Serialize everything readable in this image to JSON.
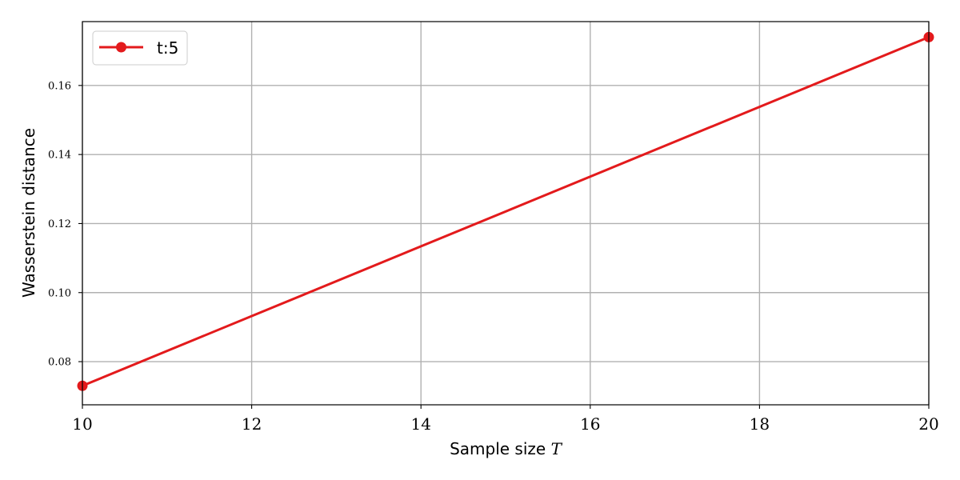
{
  "chart_data": {
    "type": "line",
    "x": [
      10,
      20
    ],
    "series": [
      {
        "name": "t:5",
        "color": "#e31a1c",
        "marker": "circle",
        "values": [
          0.073,
          0.174
        ]
      }
    ],
    "xlabel": "Sample size ",
    "xlabel_math": "T",
    "ylabel": "Wasserstein distance",
    "xlim": [
      10,
      20
    ],
    "ylim": [
      0.0675,
      0.1785
    ],
    "xticks": [
      10,
      12,
      14,
      16,
      18,
      20
    ],
    "xtick_labels": [
      "10",
      "12",
      "14",
      "16",
      "18",
      "20"
    ],
    "yticks": [
      0.08,
      0.1,
      0.12,
      0.14,
      0.16
    ],
    "ytick_labels": [
      "0.08",
      "0.10",
      "0.12",
      "0.14",
      "0.16"
    ],
    "grid": true,
    "legend_position": "top-left"
  }
}
